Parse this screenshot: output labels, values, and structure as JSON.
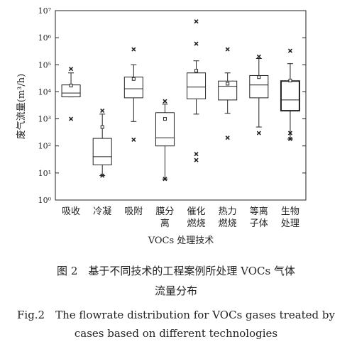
{
  "chart_data": {
    "type": "box",
    "ylabel": "废气流量(m³/h)",
    "xlabel": "VOCs 处理技术",
    "yscale": "log",
    "ylim": [
      1,
      10000000
    ],
    "ytick_labels": [
      "10⁰",
      "10¹",
      "10²",
      "10³",
      "10⁴",
      "10⁵",
      "10⁶",
      "10⁷"
    ],
    "categories": [
      [
        "吸收"
      ],
      [
        "冷凝"
      ],
      [
        "吸附"
      ],
      [
        "膜分",
        "离"
      ],
      [
        "催化",
        "燃烧"
      ],
      [
        "热力",
        "燃烧"
      ],
      [
        "等离",
        "子体"
      ],
      [
        "生物",
        "处理"
      ]
    ],
    "boxes": [
      {
        "q1": 6500,
        "median": 9000,
        "q3": 18000,
        "whisker_low": 6500,
        "whisker_high": 50000,
        "mean": 17000,
        "outliers": [
          1000,
          70000
        ]
      },
      {
        "q1": 20,
        "median": 40,
        "q3": 190,
        "whisker_low": 8,
        "whisker_high": 1500,
        "mean": 500,
        "outliers": [
          8,
          2000
        ]
      },
      {
        "q1": 6000,
        "median": 13000,
        "q3": 35000,
        "whisker_low": 800,
        "whisker_high": 100000,
        "mean": 30000,
        "outliers": [
          170,
          370000
        ]
      },
      {
        "q1": 100,
        "median": 200,
        "q3": 1700,
        "whisker_low": 6,
        "whisker_high": 3500,
        "mean": 1000,
        "outliers": [
          6,
          4500
        ]
      },
      {
        "q1": 5500,
        "median": 15000,
        "q3": 50000,
        "whisker_low": 1500,
        "whisker_high": 140000,
        "mean": 60000,
        "outliers": [
          30,
          50,
          600000,
          4000000
        ]
      },
      {
        "q1": 5000,
        "median": 16000,
        "q3": 25000,
        "whisker_low": 1600,
        "whisker_high": 50000,
        "mean": 20000,
        "outliers": [
          200,
          370000
        ]
      },
      {
        "q1": 6000,
        "median": 18000,
        "q3": 40000,
        "whisker_low": 500,
        "whisker_high": 170000,
        "mean": 35000,
        "outliers": [
          300,
          200000
        ]
      },
      {
        "q1": 2000,
        "median": 5000,
        "q3": 25000,
        "whisker_low": 180,
        "whisker_high": 110000,
        "mean": 26000,
        "outliers": [
          180,
          300,
          330000
        ]
      }
    ]
  },
  "caption": {
    "cn_line1": "图 2　基于不同技术的工程案例所处理 VOCs 气体",
    "cn_line2": "流量分布",
    "en_line1": "Fig.2　The flowrate distribution for VOCs gases treated by",
    "en_line2": "cases based on different technologies"
  }
}
